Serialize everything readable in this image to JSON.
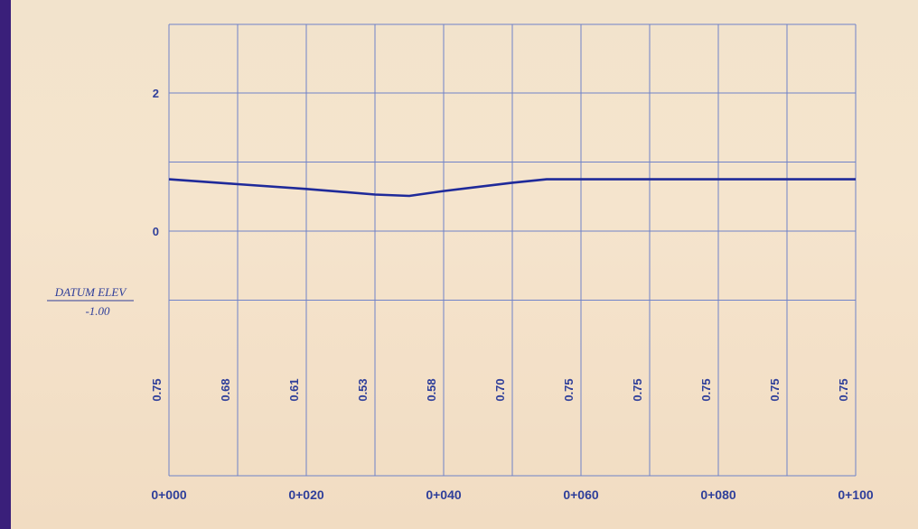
{
  "colors": {
    "grid": "#6f82c8",
    "profile_line": "#1f2a9a",
    "text": "#2f3f9a",
    "edge_stripe": "#3a1f7a",
    "paper": "#f3e2ca"
  },
  "datum": {
    "label": "DATUM ELEV",
    "value": "-1.00"
  },
  "chart_data": {
    "type": "line",
    "title": "",
    "xlabel": "",
    "ylabel": "",
    "grid": true,
    "xlim": [
      0,
      100
    ],
    "ylim": [
      -1,
      3
    ],
    "yticks": [
      "2",
      "0"
    ],
    "xticks": [
      "0+000",
      "0+020",
      "0+040",
      "0+060",
      "0+080",
      "0+100"
    ],
    "series": [
      {
        "x": [
          0,
          10,
          20,
          30,
          35,
          40,
          50,
          55,
          60,
          70,
          80,
          90,
          100
        ],
        "values": [
          0.75,
          0.68,
          0.61,
          0.53,
          0.51,
          0.58,
          0.7,
          0.75,
          0.75,
          0.75,
          0.75,
          0.75,
          0.75
        ]
      }
    ],
    "elevation_labels": [
      {
        "x": 0,
        "text": "0.75"
      },
      {
        "x": 10,
        "text": "0.68"
      },
      {
        "x": 20,
        "text": "0.61"
      },
      {
        "x": 30,
        "text": "0.53"
      },
      {
        "x": 40,
        "text": "0.58"
      },
      {
        "x": 50,
        "text": "0.70"
      },
      {
        "x": 60,
        "text": "0.75"
      },
      {
        "x": 70,
        "text": "0.75"
      },
      {
        "x": 80,
        "text": "0.75"
      },
      {
        "x": 90,
        "text": "0.75"
      },
      {
        "x": 100,
        "text": "0.75"
      }
    ]
  }
}
